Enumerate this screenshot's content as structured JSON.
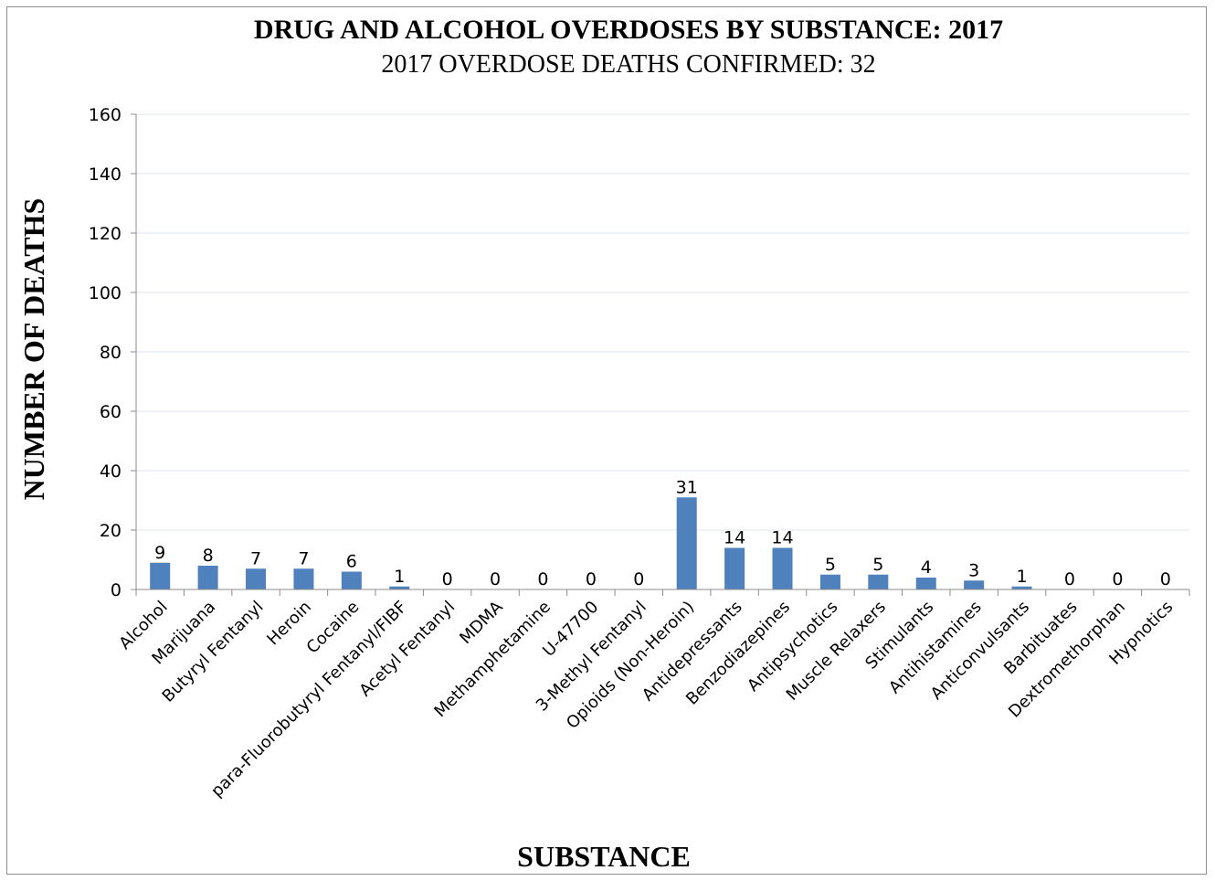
{
  "chart_data": {
    "type": "bar",
    "title": "DRUG AND ALCOHOL OVERDOSES BY SUBSTANCE: 2017",
    "subtitle": "2017 OVERDOSE DEATHS CONFIRMED: 32",
    "xlabel": "SUBSTANCE",
    "ylabel": "NUMBER OF DEATHS",
    "ylim": [
      0,
      160
    ],
    "yticks": [
      0,
      20,
      40,
      60,
      80,
      100,
      120,
      140,
      160
    ],
    "grid": true,
    "legend": "none",
    "bar_color": "#4f81bd",
    "categories": [
      "Alcohol",
      "Marijuana",
      "Butyryl Fentanyl",
      "Heroin",
      "Cocaine",
      "para-Fluorobutyryl Fentanyl/FIBF",
      "Acetyl Fentanyl",
      "MDMA",
      "Methamphetamine",
      "U-47700",
      "3-Methyl Fentanyl",
      "Opioids (Non-Heroin)",
      "Antidepressants",
      "Benzodiazepines",
      "Antipsychotics",
      "Muscle Relaxers",
      "Stimulants",
      "Antihistamines",
      "Anticonvulsants",
      "Barbituates",
      "Dextromethorphan",
      "Hypnotics"
    ],
    "values": [
      9,
      8,
      7,
      7,
      6,
      1,
      0,
      0,
      0,
      0,
      0,
      31,
      14,
      14,
      5,
      5,
      4,
      3,
      1,
      0,
      0,
      0
    ]
  }
}
